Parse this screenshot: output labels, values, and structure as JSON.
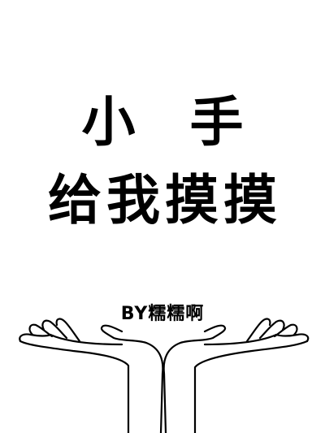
{
  "cover": {
    "title_line_1": "小 手",
    "title_line_2": "给我摸摸",
    "author": "BY糯糯啊"
  },
  "illustration": {
    "icon": "open-hands-icon"
  },
  "colors": {
    "background": "#ffffff",
    "ink": "#000000"
  }
}
